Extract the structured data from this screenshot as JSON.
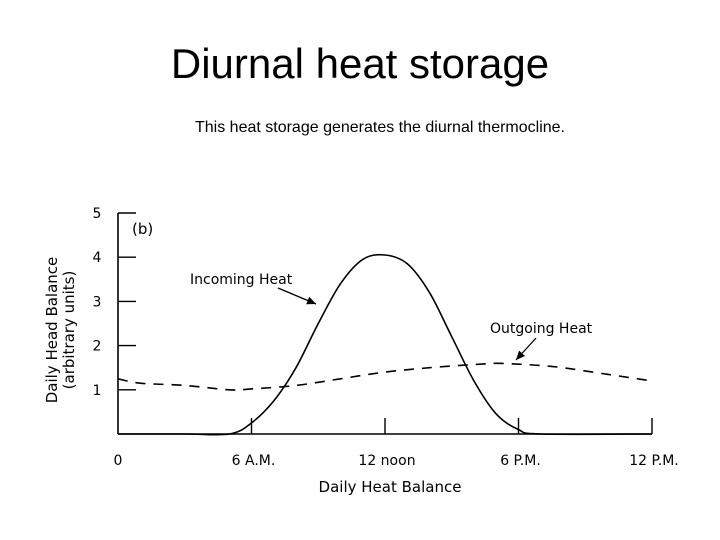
{
  "slide": {
    "title": "Diurnal heat storage",
    "subtitle": "This heat storage generates the diurnal thermocline."
  },
  "chart_data": {
    "type": "line",
    "panel_label": "(b)",
    "xlabel": "Daily Heat Balance",
    "ylabel_line1": "Daily Head Balance",
    "ylabel_line2": "(arbitrary units)",
    "xlim": [
      0,
      24
    ],
    "ylim": [
      0,
      5
    ],
    "x_ticks": [
      {
        "value": 0,
        "label": "0"
      },
      {
        "value": 6,
        "label": "6 A.M."
      },
      {
        "value": 12,
        "label": "12 noon"
      },
      {
        "value": 18,
        "label": "6 P.M."
      },
      {
        "value": 24,
        "label": "12 P.M."
      }
    ],
    "y_ticks": [
      {
        "value": 1,
        "label": "1"
      },
      {
        "value": 2,
        "label": "2"
      },
      {
        "value": 3,
        "label": "3"
      },
      {
        "value": 4,
        "label": "4"
      },
      {
        "value": 5,
        "label": "5"
      }
    ],
    "series": [
      {
        "name": "Incoming Heat",
        "style": "solid",
        "x": [
          0,
          3,
          5,
          6,
          7,
          8,
          9,
          10,
          11,
          12,
          13,
          14,
          15,
          16,
          17,
          18,
          19,
          24
        ],
        "y": [
          0,
          0,
          0,
          0.25,
          0.75,
          1.5,
          2.5,
          3.4,
          3.95,
          4.05,
          3.85,
          3.2,
          2.2,
          1.2,
          0.45,
          0.1,
          0,
          0
        ]
      },
      {
        "name": "Outgoing Heat",
        "style": "dashed",
        "x": [
          0,
          1,
          3,
          5,
          6,
          8,
          10,
          12,
          14,
          16,
          17,
          18,
          19,
          20,
          22,
          24
        ],
        "y": [
          1.25,
          1.15,
          1.1,
          1.0,
          1.02,
          1.1,
          1.25,
          1.4,
          1.5,
          1.57,
          1.6,
          1.58,
          1.55,
          1.5,
          1.35,
          1.2
        ]
      }
    ],
    "annotations": [
      {
        "text": "Incoming Heat",
        "points_to_series": "Incoming Heat"
      },
      {
        "text": "Outgoing Heat",
        "points_to_series": "Outgoing Heat"
      }
    ]
  }
}
